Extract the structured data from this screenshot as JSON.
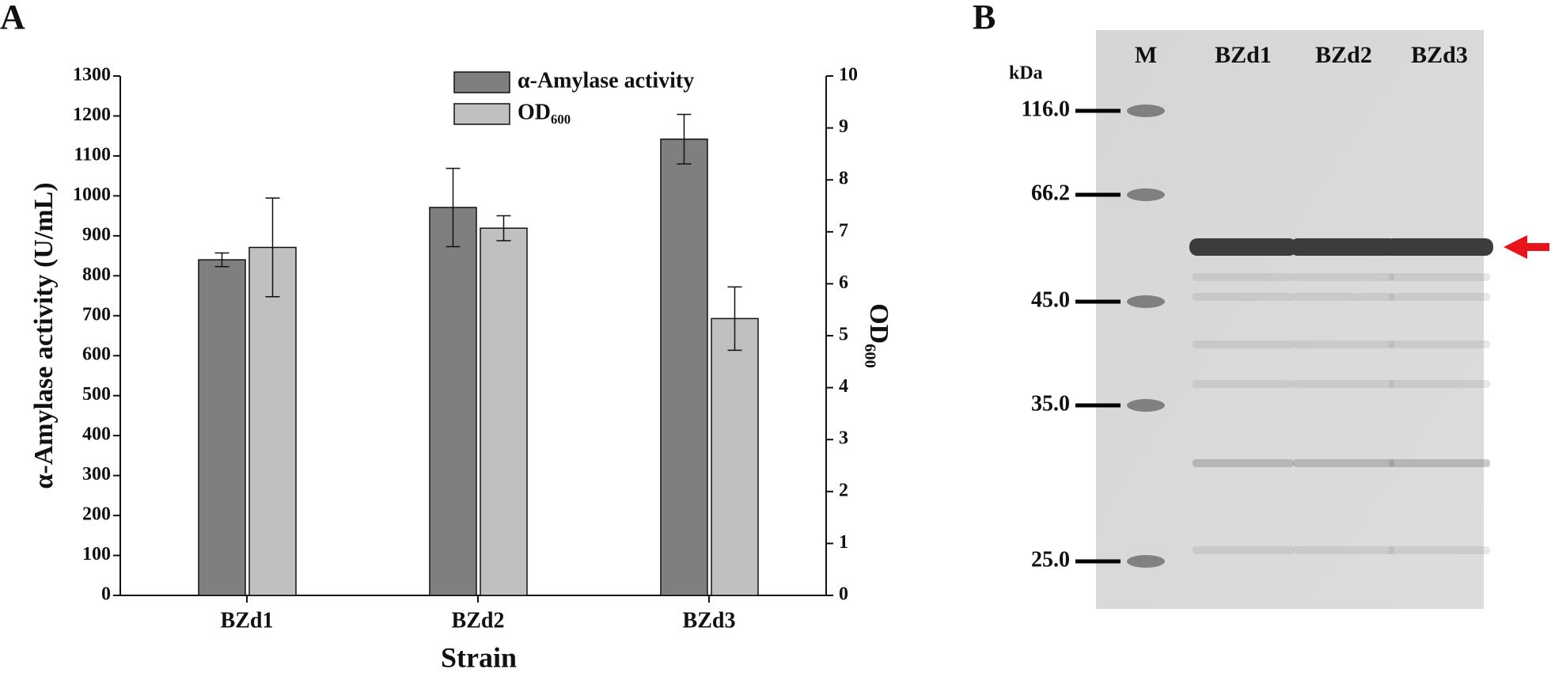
{
  "chart_data": {
    "type": "bar",
    "panel_label": "A",
    "xlabel": "Strain",
    "ylabel": "α-Amylase activity (U/mL)",
    "y2label": "OD₆₀₀",
    "categories": [
      "BZd1",
      "BZd2",
      "BZd3"
    ],
    "series": [
      {
        "name": "α-Amylase activity",
        "color": "#7f7f7f",
        "values": [
          840,
          971,
          1142
        ],
        "errors": [
          17,
          98,
          62
        ]
      },
      {
        "name": "OD₆₀₀",
        "color": "#c0c0c0",
        "axis": "y2",
        "values": [
          6.7,
          7.07,
          5.33
        ],
        "errors": [
          0.95,
          0.24,
          0.61
        ]
      }
    ],
    "ylim": [
      0,
      1300
    ],
    "yticks": [
      0,
      100,
      200,
      300,
      400,
      500,
      600,
      700,
      800,
      900,
      1000,
      1100,
      1200,
      1300
    ],
    "y2lim": [
      0,
      10
    ],
    "y2ticks": [
      0,
      1,
      2,
      3,
      4,
      5,
      6,
      7,
      8,
      9,
      10
    ],
    "legend": "top",
    "grid": false
  },
  "gel": {
    "label": "B",
    "unit": "kDa",
    "lanes": [
      "M",
      "BZd1",
      "BZd2",
      "BZd3"
    ],
    "markers": [
      "116.0",
      "66.2",
      "45.0",
      "35.0",
      "25.0"
    ]
  }
}
